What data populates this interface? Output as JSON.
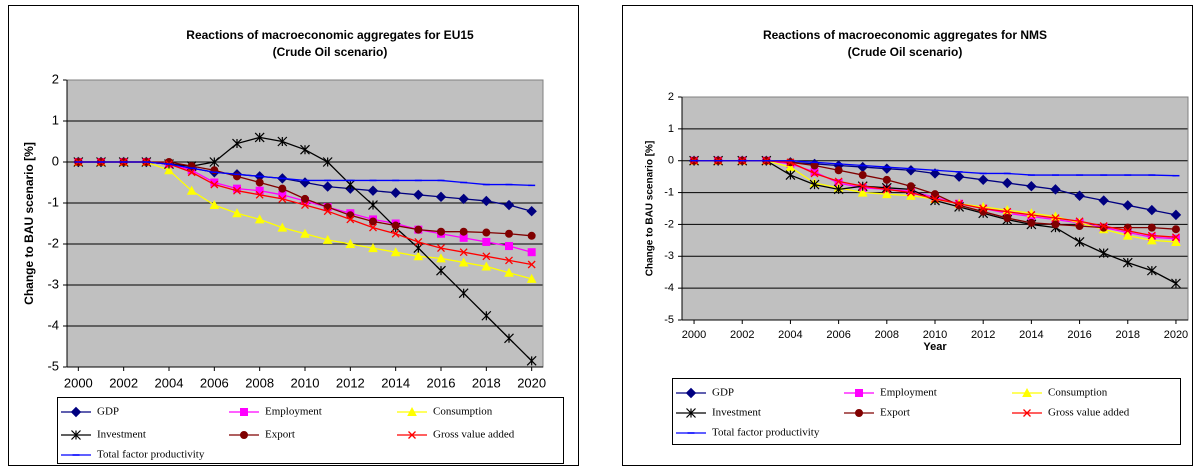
{
  "chart_data": [
    {
      "type": "line",
      "title": [
        "Reactions of macroeconomic aggregates for EU15",
        "(Crude Oil scenario)"
      ],
      "ylabel": "Change to BAU scenario [%]",
      "x": [
        2000,
        2001,
        2002,
        2003,
        2004,
        2005,
        2006,
        2007,
        2008,
        2009,
        2010,
        2011,
        2012,
        2013,
        2014,
        2015,
        2016,
        2017,
        2018,
        2019,
        2020
      ],
      "xlim": [
        1999.5,
        2020.5
      ],
      "xticks": [
        2000,
        2002,
        2004,
        2006,
        2008,
        2010,
        2012,
        2014,
        2016,
        2018,
        2020
      ],
      "ylim": [
        -5,
        2
      ],
      "yticks": [
        -5,
        -4,
        -3,
        -2,
        -1,
        0,
        1,
        2
      ],
      "grid": true,
      "legend": "bottom",
      "series": [
        {
          "name": "GDP",
          "color": "#000080",
          "marker": "diamond",
          "values": [
            0,
            0,
            0,
            0,
            -0.05,
            -0.15,
            -0.25,
            -0.3,
            -0.35,
            -0.4,
            -0.5,
            -0.6,
            -0.65,
            -0.7,
            -0.75,
            -0.8,
            -0.85,
            -0.9,
            -0.95,
            -1.05,
            -1.2
          ]
        },
        {
          "name": "Employment",
          "color": "#FF00FF",
          "marker": "square",
          "values": [
            0,
            0,
            0,
            0,
            -0.05,
            -0.2,
            -0.5,
            -0.65,
            -0.7,
            -0.8,
            -0.95,
            -1.1,
            -1.25,
            -1.4,
            -1.5,
            -1.65,
            -1.75,
            -1.85,
            -1.95,
            -2.05,
            -2.2
          ]
        },
        {
          "name": "Consumption",
          "color": "#FFFF00",
          "marker": "triangle",
          "values": [
            0,
            0,
            0,
            0,
            -0.2,
            -0.7,
            -1.05,
            -1.25,
            -1.4,
            -1.6,
            -1.75,
            -1.9,
            -2.0,
            -2.1,
            -2.2,
            -2.3,
            -2.35,
            -2.45,
            -2.55,
            -2.7,
            -2.85
          ]
        },
        {
          "name": "Investment",
          "color": "#000000",
          "marker": "star",
          "values": [
            0,
            0,
            0,
            0,
            -0.05,
            -0.1,
            0,
            0.45,
            0.6,
            0.5,
            0.3,
            0,
            -0.55,
            -1.05,
            -1.6,
            -2.1,
            -2.65,
            -3.2,
            -3.75,
            -4.3,
            -4.85
          ]
        },
        {
          "name": "Export",
          "color": "#800000",
          "marker": "circle",
          "values": [
            0,
            0,
            0,
            0,
            0,
            -0.1,
            -0.2,
            -0.35,
            -0.5,
            -0.65,
            -0.9,
            -1.1,
            -1.3,
            -1.45,
            -1.55,
            -1.65,
            -1.7,
            -1.7,
            -1.72,
            -1.75,
            -1.8
          ]
        },
        {
          "name": "Gross value added",
          "color": "#FF0000",
          "marker": "x",
          "values": [
            0,
            0,
            0,
            0,
            -0.05,
            -0.25,
            -0.55,
            -0.7,
            -0.8,
            -0.9,
            -1.05,
            -1.2,
            -1.4,
            -1.6,
            -1.75,
            -1.95,
            -2.1,
            -2.2,
            -2.3,
            -2.4,
            -2.5
          ]
        },
        {
          "name": "Total factor productivity",
          "color": "#0000FF",
          "marker": "dash",
          "values": [
            0,
            0,
            0,
            0,
            -0.05,
            -0.15,
            -0.25,
            -0.3,
            -0.35,
            -0.4,
            -0.45,
            -0.45,
            -0.45,
            -0.45,
            -0.45,
            -0.45,
            -0.45,
            -0.5,
            -0.55,
            -0.55,
            -0.57
          ]
        }
      ]
    },
    {
      "type": "line",
      "title": [
        "Reactions of macroeconomic aggregates for NMS",
        "(Crude Oil scenario)"
      ],
      "ylabel": "Change to BAU scenario [%]",
      "xlabel": "Year",
      "x": [
        2000,
        2001,
        2002,
        2003,
        2004,
        2005,
        2006,
        2007,
        2008,
        2009,
        2010,
        2011,
        2012,
        2013,
        2014,
        2015,
        2016,
        2017,
        2018,
        2019,
        2020
      ],
      "xlim": [
        1999.5,
        2020.5
      ],
      "xticks": [
        2000,
        2002,
        2004,
        2006,
        2008,
        2010,
        2012,
        2014,
        2016,
        2018,
        2020
      ],
      "ylim": [
        -5,
        2
      ],
      "yticks": [
        -5,
        -4,
        -3,
        -2,
        -1,
        0,
        1,
        2
      ],
      "grid": true,
      "legend": "bottom",
      "series": [
        {
          "name": "GDP",
          "color": "#000080",
          "marker": "diamond",
          "values": [
            0,
            0,
            0,
            0,
            -0.05,
            -0.1,
            -0.15,
            -0.2,
            -0.25,
            -0.3,
            -0.4,
            -0.5,
            -0.6,
            -0.7,
            -0.8,
            -0.9,
            -1.1,
            -1.25,
            -1.4,
            -1.55,
            -1.7
          ]
        },
        {
          "name": "Employment",
          "color": "#FF00FF",
          "marker": "square",
          "values": [
            0,
            0,
            0,
            0,
            -0.1,
            -0.35,
            -0.7,
            -0.85,
            -0.9,
            -0.95,
            -1.15,
            -1.35,
            -1.5,
            -1.65,
            -1.75,
            -1.85,
            -1.95,
            -2.1,
            -2.25,
            -2.4,
            -2.45
          ]
        },
        {
          "name": "Consumption",
          "color": "#FFFF00",
          "marker": "triangle",
          "values": [
            0,
            0,
            0,
            0,
            -0.2,
            -0.7,
            -0.85,
            -1.0,
            -1.05,
            -1.1,
            -1.2,
            -1.35,
            -1.45,
            -1.55,
            -1.65,
            -1.75,
            -1.95,
            -2.15,
            -2.35,
            -2.5,
            -2.55
          ]
        },
        {
          "name": "Investment",
          "color": "#000000",
          "marker": "star",
          "values": [
            0,
            0,
            0,
            0,
            -0.45,
            -0.75,
            -0.9,
            -0.8,
            -0.85,
            -0.9,
            -1.25,
            -1.45,
            -1.65,
            -1.85,
            -2.0,
            -2.1,
            -2.55,
            -2.9,
            -3.2,
            -3.45,
            -3.85
          ]
        },
        {
          "name": "Export",
          "color": "#800000",
          "marker": "circle",
          "values": [
            0,
            0,
            0,
            0,
            -0.05,
            -0.15,
            -0.3,
            -0.45,
            -0.6,
            -0.8,
            -1.05,
            -1.4,
            -1.6,
            -1.8,
            -1.95,
            -2.0,
            -2.05,
            -2.1,
            -2.1,
            -2.1,
            -2.15
          ]
        },
        {
          "name": "Gross value added",
          "color": "#FF0000",
          "marker": "x",
          "values": [
            0,
            0,
            0,
            0,
            -0.05,
            -0.4,
            -0.65,
            -0.8,
            -0.9,
            -1.0,
            -1.2,
            -1.35,
            -1.5,
            -1.6,
            -1.7,
            -1.8,
            -1.9,
            -2.05,
            -2.2,
            -2.35,
            -2.4
          ]
        },
        {
          "name": "Total factor productivity",
          "color": "#0000FF",
          "marker": "dash",
          "values": [
            0,
            0,
            0,
            0,
            0,
            -0.05,
            -0.1,
            -0.15,
            -0.2,
            -0.25,
            -0.3,
            -0.35,
            -0.4,
            -0.4,
            -0.45,
            -0.45,
            -0.45,
            -0.45,
            -0.45,
            -0.45,
            -0.47
          ]
        }
      ]
    }
  ]
}
